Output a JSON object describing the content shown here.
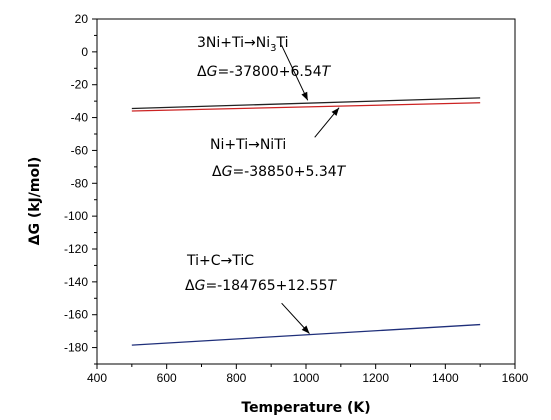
{
  "chart_data": {
    "type": "line",
    "xlabel": "Temperature (K)",
    "ylabel_prefix": "ΔG",
    "ylabel_suffix": " (kJ/mol)",
    "xlim": [
      400,
      1600
    ],
    "ylim": [
      -190,
      20
    ],
    "xticks": [
      400,
      600,
      800,
      1000,
      1200,
      1400,
      1600
    ],
    "yticks": [
      20,
      0,
      -20,
      -40,
      -60,
      -80,
      -100,
      -120,
      -140,
      -160,
      -180
    ],
    "grid": false,
    "series": [
      {
        "color": "#222222",
        "x": [
          500,
          1500
        ],
        "y": [
          -34.5,
          -28.0
        ]
      },
      {
        "color": "#cc2222",
        "x": [
          500,
          1500
        ],
        "y": [
          -36.0,
          -31.0
        ]
      },
      {
        "color": "#1f2f7a",
        "x": [
          500,
          1500
        ],
        "y": [
          -178.5,
          -166.0
        ]
      }
    ],
    "annotations": [
      {
        "reaction": {
          "pre": "3Ni+Ti→Ni",
          "sub": "3",
          "post": "Ti"
        },
        "eq": {
          "g": "G",
          "expr": "=-37800+6.54",
          "t": "T"
        },
        "arrow_from": [
          930,
          4
        ],
        "arrow_to": [
          1005,
          -29.5
        ]
      },
      {
        "reaction": {
          "pre": "Ni+Ti→NiTi",
          "sub": "",
          "post": ""
        },
        "eq": {
          "g": "G",
          "expr": "=-38850+5.34",
          "t": "T"
        },
        "arrow_from": [
          1025,
          -52
        ],
        "arrow_to": [
          1095,
          -34
        ]
      },
      {
        "reaction": {
          "pre": "Ti+C→TiC",
          "sub": "",
          "post": ""
        },
        "eq": {
          "g": "G",
          "expr": "=-184765+12.55",
          "t": "T"
        },
        "arrow_from": [
          930,
          -153
        ],
        "arrow_to": [
          1010,
          -171.5
        ]
      }
    ]
  }
}
